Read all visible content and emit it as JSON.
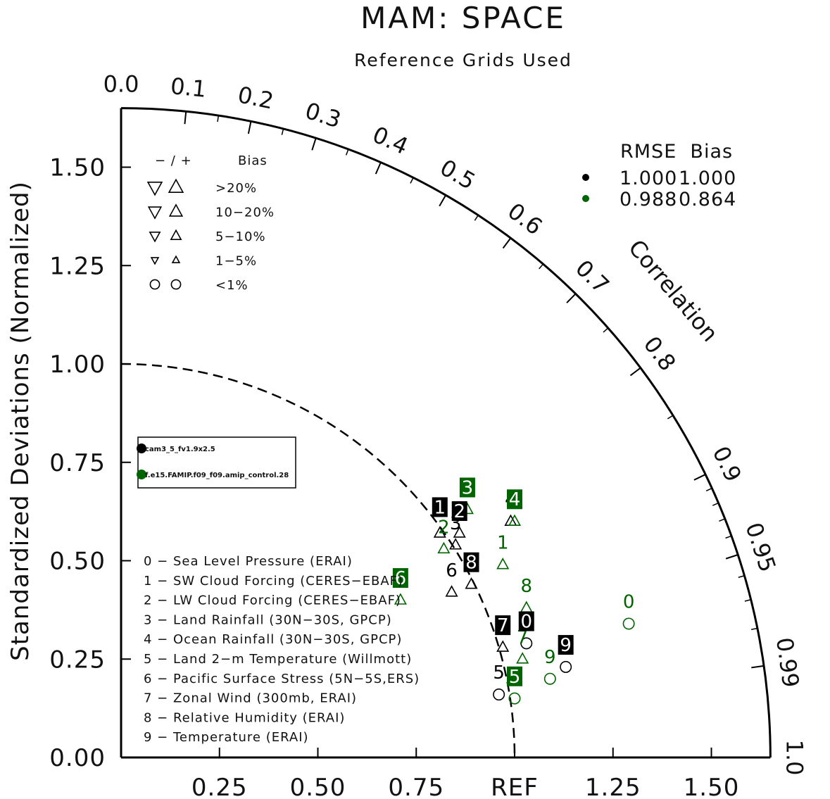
{
  "chart_data": {
    "type": "taylor",
    "title": "MAM: SPACE",
    "subtitle": "Reference Grids Used",
    "ylabel": "Standardized Deviations (Normalized)",
    "xlabel_ref": "REF",
    "corr_label": "Correlation",
    "std_max": 1.65,
    "x_ticks": [
      "0.25",
      "0.50",
      "0.75",
      "REF",
      "1.25",
      "1.50"
    ],
    "y_ticks": [
      "0.00",
      "0.25",
      "0.50",
      "0.75",
      "1.00",
      "1.25",
      "1.50"
    ],
    "corr_ticks": [
      {
        "label": "0.0",
        "value": 0.0
      },
      {
        "label": "0.1",
        "value": 0.1
      },
      {
        "label": "0.2",
        "value": 0.2
      },
      {
        "label": "0.3",
        "value": 0.3
      },
      {
        "label": "0.4",
        "value": 0.4
      },
      {
        "label": "0.5",
        "value": 0.5
      },
      {
        "label": "0.6",
        "value": 0.6
      },
      {
        "label": "0.7",
        "value": 0.7
      },
      {
        "label": "0.8",
        "value": 0.8
      },
      {
        "label": "0.9",
        "value": 0.9
      },
      {
        "label": "0.95",
        "value": 0.95
      },
      {
        "label": "0.99",
        "value": 0.99
      },
      {
        "label": "1.0",
        "value": 1.0
      }
    ],
    "bias_legend": {
      "header_sign": "− / +",
      "header_bias": "Bias",
      "rows": [
        ">20%",
        "10−20%",
        "5−10%",
        "1−5%",
        "<1%"
      ]
    },
    "rmse_legend": {
      "header": "RMSE  Bias",
      "rows": [
        {
          "color": "#000000",
          "rmse": "1.000",
          "bias": "1.000"
        },
        {
          "color": "#006400",
          "rmse": "0.988",
          "bias": "0.864"
        }
      ]
    },
    "series": [
      {
        "name": "cam3_5_fv1.9x2.5",
        "color": "#000000",
        "points": [
          {
            "id": "0",
            "x": 1.03,
            "y": 0.29,
            "marker": "circle"
          },
          {
            "id": "1",
            "x": 0.81,
            "y": 0.57,
            "marker": "up"
          },
          {
            "id": "2",
            "x": 0.86,
            "y": 0.57,
            "marker": "up"
          },
          {
            "id": "3",
            "x": 0.85,
            "y": 0.54,
            "marker": "up"
          },
          {
            "id": "4",
            "x": 0.99,
            "y": 0.6,
            "marker": "up"
          },
          {
            "id": "5",
            "x": 0.96,
            "y": 0.16,
            "marker": "circle"
          },
          {
            "id": "6",
            "x": 0.84,
            "y": 0.42,
            "marker": "up"
          },
          {
            "id": "7",
            "x": 0.97,
            "y": 0.28,
            "marker": "up"
          },
          {
            "id": "8",
            "x": 0.89,
            "y": 0.44,
            "marker": "up"
          },
          {
            "id": "9",
            "x": 1.13,
            "y": 0.23,
            "marker": "circle"
          }
        ]
      },
      {
        "name": "f.e15.FAMIP.f09_f09.amip_control.28",
        "color": "#006400",
        "points": [
          {
            "id": "0",
            "x": 1.29,
            "y": 0.34,
            "marker": "circle"
          },
          {
            "id": "1",
            "x": 0.97,
            "y": 0.49,
            "marker": "up"
          },
          {
            "id": "2",
            "x": 0.82,
            "y": 0.53,
            "marker": "up"
          },
          {
            "id": "3",
            "x": 0.88,
            "y": 0.63,
            "marker": "up"
          },
          {
            "id": "4",
            "x": 1.0,
            "y": 0.6,
            "marker": "up"
          },
          {
            "id": "5",
            "x": 1.0,
            "y": 0.15,
            "marker": "circle"
          },
          {
            "id": "6",
            "x": 0.71,
            "y": 0.4,
            "marker": "up"
          },
          {
            "id": "7",
            "x": 1.02,
            "y": 0.25,
            "marker": "up"
          },
          {
            "id": "8",
            "x": 1.03,
            "y": 0.38,
            "marker": "up"
          },
          {
            "id": "9",
            "x": 1.09,
            "y": 0.2,
            "marker": "circle"
          }
        ]
      }
    ],
    "boxed_labels": [
      {
        "id": "0",
        "x": 1.03,
        "y": 0.33,
        "color": "#000000"
      },
      {
        "id": "1",
        "x": 0.81,
        "y": 0.62,
        "color": "#000000"
      },
      {
        "id": "2",
        "x": 0.86,
        "y": 0.61,
        "color": "#000000"
      },
      {
        "id": "7",
        "x": 0.97,
        "y": 0.32,
        "color": "#000000"
      },
      {
        "id": "8",
        "x": 0.89,
        "y": 0.48,
        "color": "#000000"
      },
      {
        "id": "9",
        "x": 1.13,
        "y": 0.27,
        "color": "#000000"
      },
      {
        "id": "3",
        "x": 0.88,
        "y": 0.67,
        "color": "#006400"
      },
      {
        "id": "4",
        "x": 1.0,
        "y": 0.64,
        "color": "#006400"
      },
      {
        "id": "5",
        "x": 1.0,
        "y": 0.19,
        "color": "#006400"
      },
      {
        "id": "6",
        "x": 0.71,
        "y": 0.44,
        "color": "#006400"
      }
    ],
    "plain_labels": [
      {
        "id": "3",
        "x": 0.85,
        "y": 0.58,
        "color": "#000000"
      },
      {
        "id": "4",
        "x": 0.99,
        "y": 0.64,
        "color": "#000000"
      },
      {
        "id": "5",
        "x": 0.96,
        "y": 0.2,
        "color": "#000000"
      },
      {
        "id": "6",
        "x": 0.84,
        "y": 0.46,
        "color": "#000000"
      },
      {
        "id": "0",
        "x": 1.29,
        "y": 0.38,
        "color": "#006400"
      },
      {
        "id": "1",
        "x": 0.97,
        "y": 0.53,
        "color": "#006400"
      },
      {
        "id": "2",
        "x": 0.82,
        "y": 0.57,
        "color": "#006400"
      },
      {
        "id": "7",
        "x": 1.02,
        "y": 0.29,
        "color": "#006400"
      },
      {
        "id": "8",
        "x": 1.03,
        "y": 0.42,
        "color": "#006400"
      },
      {
        "id": "9",
        "x": 1.09,
        "y": 0.24,
        "color": "#006400"
      }
    ],
    "case_legend": [
      {
        "label": "0 − Sea Level Pressure (ERAI)"
      },
      {
        "label": "1 − SW Cloud Forcing (CERES−EBAF)"
      },
      {
        "label": "2 − LW Cloud Forcing (CERES−EBAF)"
      },
      {
        "label": "3 − Land Rainfall (30N−30S, GPCP)"
      },
      {
        "label": "4 − Ocean Rainfall (30N−30S, GPCP)"
      },
      {
        "label": "5 − Land 2−m Temperature (Willmott)"
      },
      {
        "label": "6 − Pacific Surface Stress (5N−5S,ERS)"
      },
      {
        "label": "7 − Zonal Wind (300mb, ERAI)"
      },
      {
        "label": "8 − Relative Humidity (ERAI)"
      },
      {
        "label": "9 − Temperature (ERAI)"
      }
    ]
  }
}
